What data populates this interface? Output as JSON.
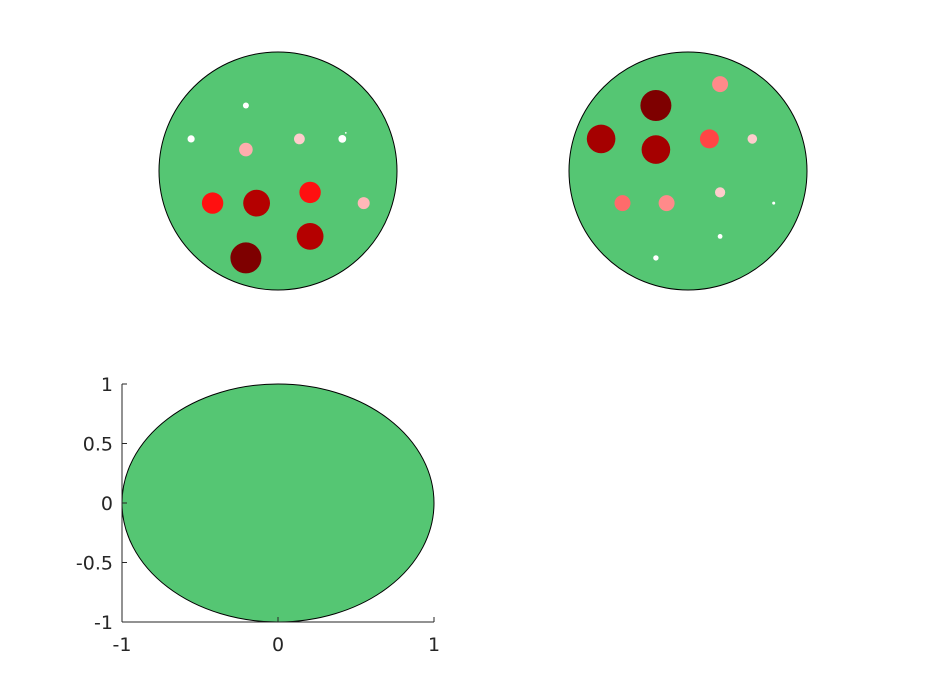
{
  "chart_data": [
    {
      "type": "scatter",
      "panel": "top-left",
      "axes_visible": false,
      "disc": {
        "color": "#55c673"
      },
      "markers": [
        {
          "x": 0.57,
          "y": 0.32,
          "r": 0.03,
          "color": "#ffffff"
        },
        {
          "x": -0.27,
          "y": 0.55,
          "r": 0.1,
          "color": "#ffffff"
        },
        {
          "x": -0.73,
          "y": 0.27,
          "r": 0.12,
          "color": "#ffffff"
        },
        {
          "x": 0.54,
          "y": 0.27,
          "r": 0.13,
          "color": "#ffffff"
        },
        {
          "x": -0.27,
          "y": 0.18,
          "r": 0.23,
          "color": "#ffadad"
        },
        {
          "x": 0.18,
          "y": 0.27,
          "r": 0.18,
          "color": "#ffcccc"
        },
        {
          "x": 0.72,
          "y": -0.27,
          "r": 0.2,
          "color": "#ffb8b8"
        },
        {
          "x": -0.55,
          "y": -0.27,
          "r": 0.36,
          "color": "#ff1010"
        },
        {
          "x": 0.27,
          "y": -0.18,
          "r": 0.36,
          "color": "#ff1010"
        },
        {
          "x": -0.18,
          "y": -0.27,
          "r": 0.45,
          "color": "#b40000"
        },
        {
          "x": 0.27,
          "y": -0.55,
          "r": 0.45,
          "color": "#b40000"
        },
        {
          "x": -0.27,
          "y": -0.73,
          "r": 0.52,
          "color": "#7e0000"
        }
      ]
    },
    {
      "type": "scatter",
      "panel": "top-right",
      "axes_visible": false,
      "disc": {
        "color": "#55c673"
      },
      "markers": [
        {
          "x": 0.27,
          "y": 0.73,
          "r": 0.27,
          "color": "#ff8a8a"
        },
        {
          "x": -0.27,
          "y": 0.55,
          "r": 0.52,
          "color": "#7e0000"
        },
        {
          "x": -0.73,
          "y": 0.27,
          "r": 0.48,
          "color": "#a50000"
        },
        {
          "x": -0.27,
          "y": 0.18,
          "r": 0.48,
          "color": "#a50000"
        },
        {
          "x": 0.18,
          "y": 0.27,
          "r": 0.32,
          "color": "#ff4545"
        },
        {
          "x": 0.54,
          "y": 0.27,
          "r": 0.16,
          "color": "#ffcccc"
        },
        {
          "x": 0.27,
          "y": -0.18,
          "r": 0.17,
          "color": "#ffcccc"
        },
        {
          "x": 0.72,
          "y": -0.27,
          "r": 0.05,
          "color": "#ffffff"
        },
        {
          "x": -0.55,
          "y": -0.27,
          "r": 0.27,
          "color": "#ff6b6b"
        },
        {
          "x": -0.18,
          "y": -0.27,
          "r": 0.27,
          "color": "#ff8a8a"
        },
        {
          "x": 0.27,
          "y": -0.55,
          "r": 0.08,
          "color": "#ffffff"
        },
        {
          "x": -0.27,
          "y": -0.73,
          "r": 0.09,
          "color": "#ffffff"
        }
      ]
    },
    {
      "type": "scatter",
      "panel": "bottom-left",
      "axes_visible": true,
      "disc": {
        "color": "#55c673"
      },
      "xlim": [
        -1,
        1
      ],
      "ylim": [
        -1,
        1
      ],
      "xticks": [
        "-1",
        "0",
        "1"
      ],
      "yticks": [
        "1",
        "0.5",
        "0",
        "-0.5",
        "-1"
      ],
      "markers": []
    }
  ]
}
